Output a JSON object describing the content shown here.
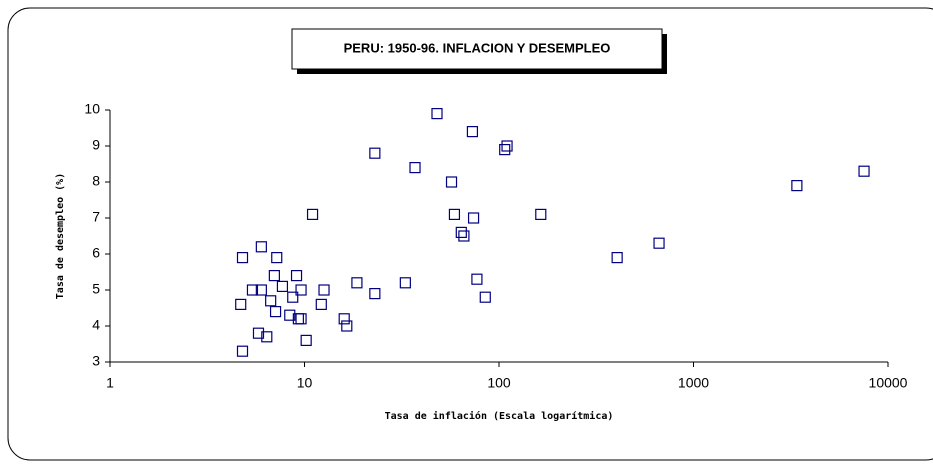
{
  "chart_data": {
    "type": "scatter",
    "title": "PERU: 1950-96. INFLACION Y DESEMPLEO",
    "x_label": "Tasa de inflación (Escala logarítmica)",
    "y_label": "Tasa de desempleo (%)",
    "xscale": "log",
    "xlim": [
      1,
      10000
    ],
    "xticks": [
      1,
      10,
      100,
      1000,
      10000
    ],
    "ylim": [
      3,
      10
    ],
    "yticks": [
      3,
      4,
      5,
      6,
      7,
      8,
      9,
      10
    ],
    "color": "#000080",
    "x": [
      48,
      73,
      110,
      107,
      23,
      37,
      57,
      3400,
      7530,
      11,
      59,
      74,
      164,
      64,
      66,
      665,
      405,
      6.0,
      4.8,
      7.2,
      7.0,
      9.1,
      77,
      18.6,
      33,
      5.4,
      6.0,
      7.7,
      9.6,
      12.6,
      23,
      85,
      8.7,
      4.7,
      6.7,
      12.2,
      7.1,
      8.4,
      9.3,
      9.6,
      16,
      16.5,
      5.8,
      6.4,
      10.2,
      4.8
    ],
    "y": [
      9.9,
      9.4,
      9.0,
      8.9,
      8.8,
      8.4,
      8.0,
      7.9,
      8.3,
      7.1,
      7.1,
      7.0,
      7.1,
      6.6,
      6.5,
      6.3,
      5.9,
      6.2,
      5.9,
      5.9,
      5.4,
      5.4,
      5.3,
      5.2,
      5.2,
      5.0,
      5.0,
      5.1,
      5.0,
      5.0,
      4.9,
      4.8,
      4.8,
      4.6,
      4.7,
      4.6,
      4.4,
      4.3,
      4.2,
      4.2,
      4.2,
      4.0,
      3.8,
      3.7,
      3.6,
      3.3
    ]
  }
}
